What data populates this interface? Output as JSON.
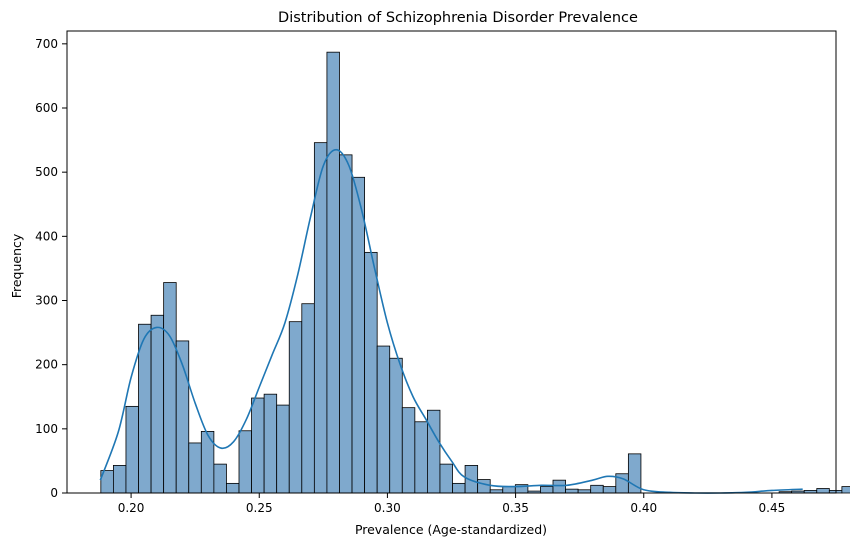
{
  "chart_data": {
    "type": "bar",
    "subtype": "histogram-with-kde",
    "title": "Distribution of Schizophrenia Disorder Prevalence",
    "xlabel": "Prevalence (Age-standardized)",
    "ylabel": "Frequency",
    "xlim": [
      0.175,
      0.475
    ],
    "ylim": [
      0,
      720
    ],
    "xticks": [
      "0.20",
      "0.25",
      "0.30",
      "0.35",
      "0.40",
      "0.45"
    ],
    "yticks": [
      "0",
      "100",
      "200",
      "300",
      "400",
      "500",
      "600",
      "700"
    ],
    "grid": false,
    "legend": "none",
    "bin_start": 0.1882,
    "bin_width": 0.0049,
    "counts": [
      35,
      43,
      135,
      263,
      277,
      328,
      237,
      78,
      96,
      45,
      15,
      97,
      148,
      154,
      137,
      267,
      295,
      546,
      687,
      527,
      492,
      375,
      229,
      210,
      133,
      111,
      129,
      45,
      15,
      43,
      21,
      5,
      10,
      13,
      3,
      10,
      20,
      6,
      5,
      12,
      10,
      30,
      61,
      0,
      0,
      0,
      0,
      0,
      0,
      0,
      0,
      0,
      0,
      0,
      2,
      3,
      4,
      7,
      4,
      10
    ],
    "kde": {
      "x": [
        0.188,
        0.195,
        0.2,
        0.205,
        0.21,
        0.215,
        0.22,
        0.225,
        0.23,
        0.235,
        0.24,
        0.245,
        0.25,
        0.255,
        0.26,
        0.265,
        0.27,
        0.275,
        0.28,
        0.285,
        0.29,
        0.295,
        0.3,
        0.305,
        0.31,
        0.315,
        0.32,
        0.325,
        0.33,
        0.34,
        0.35,
        0.36,
        0.37,
        0.38,
        0.386,
        0.392,
        0.4,
        0.41,
        0.42,
        0.43,
        0.44,
        0.45,
        0.462
      ],
      "y": [
        20,
        95,
        180,
        240,
        258,
        245,
        200,
        140,
        90,
        70,
        80,
        115,
        165,
        215,
        265,
        340,
        430,
        510,
        535,
        510,
        440,
        350,
        265,
        200,
        150,
        115,
        80,
        50,
        25,
        12,
        10,
        12,
        12,
        20,
        26,
        22,
        5,
        1,
        0,
        0,
        1,
        4,
        6
      ]
    },
    "colors": {
      "bar_fill": "#7fa9cd",
      "bar_edge": "#000000",
      "kde_line": "#1f77b4"
    }
  }
}
